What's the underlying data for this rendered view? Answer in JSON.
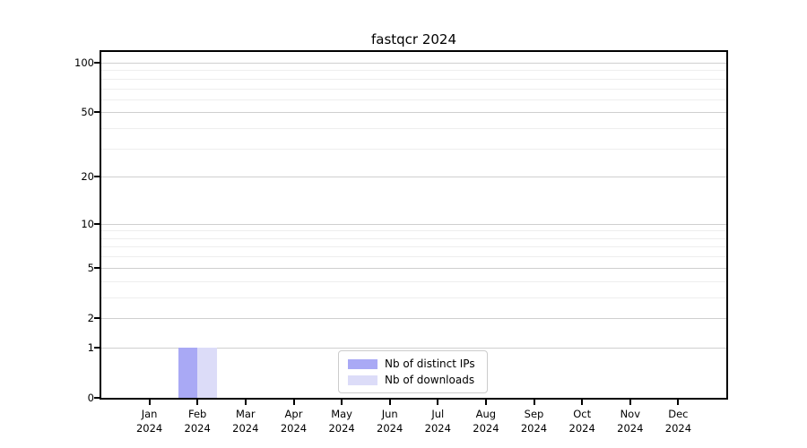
{
  "chart_data": {
    "type": "bar",
    "title": "fastqcr 2024",
    "categories": [
      "Jan 2024",
      "Feb 2024",
      "Mar 2024",
      "Apr 2024",
      "May 2024",
      "Jun 2024",
      "Jul 2024",
      "Aug 2024",
      "Sep 2024",
      "Oct 2024",
      "Nov 2024",
      "Dec 2024"
    ],
    "series": [
      {
        "name": "Nb of distinct IPs",
        "color": "#a9a9f5",
        "values": [
          0,
          1,
          0,
          0,
          0,
          0,
          0,
          0,
          0,
          0,
          0,
          0
        ]
      },
      {
        "name": "Nb of downloads",
        "color": "#dcdcf8",
        "values": [
          0,
          1,
          0,
          0,
          0,
          0,
          0,
          0,
          0,
          0,
          0,
          0
        ]
      }
    ],
    "xlabel": "",
    "ylabel": "",
    "yscale": "log1p",
    "yticks": [
      0,
      1,
      2,
      5,
      10,
      20,
      50,
      100
    ],
    "minor_gridlines": [
      3,
      4,
      6,
      7,
      8,
      9,
      30,
      40,
      60,
      70,
      80,
      90
    ],
    "ylim": [
      0,
      116
    ],
    "grid": "horizontal",
    "legend_position": "lower-center-inside",
    "colors": {
      "axis": "#000000",
      "background": "#ffffff",
      "major_grid": "#cfcfcf",
      "minor_grid": "#eeeeee"
    }
  }
}
